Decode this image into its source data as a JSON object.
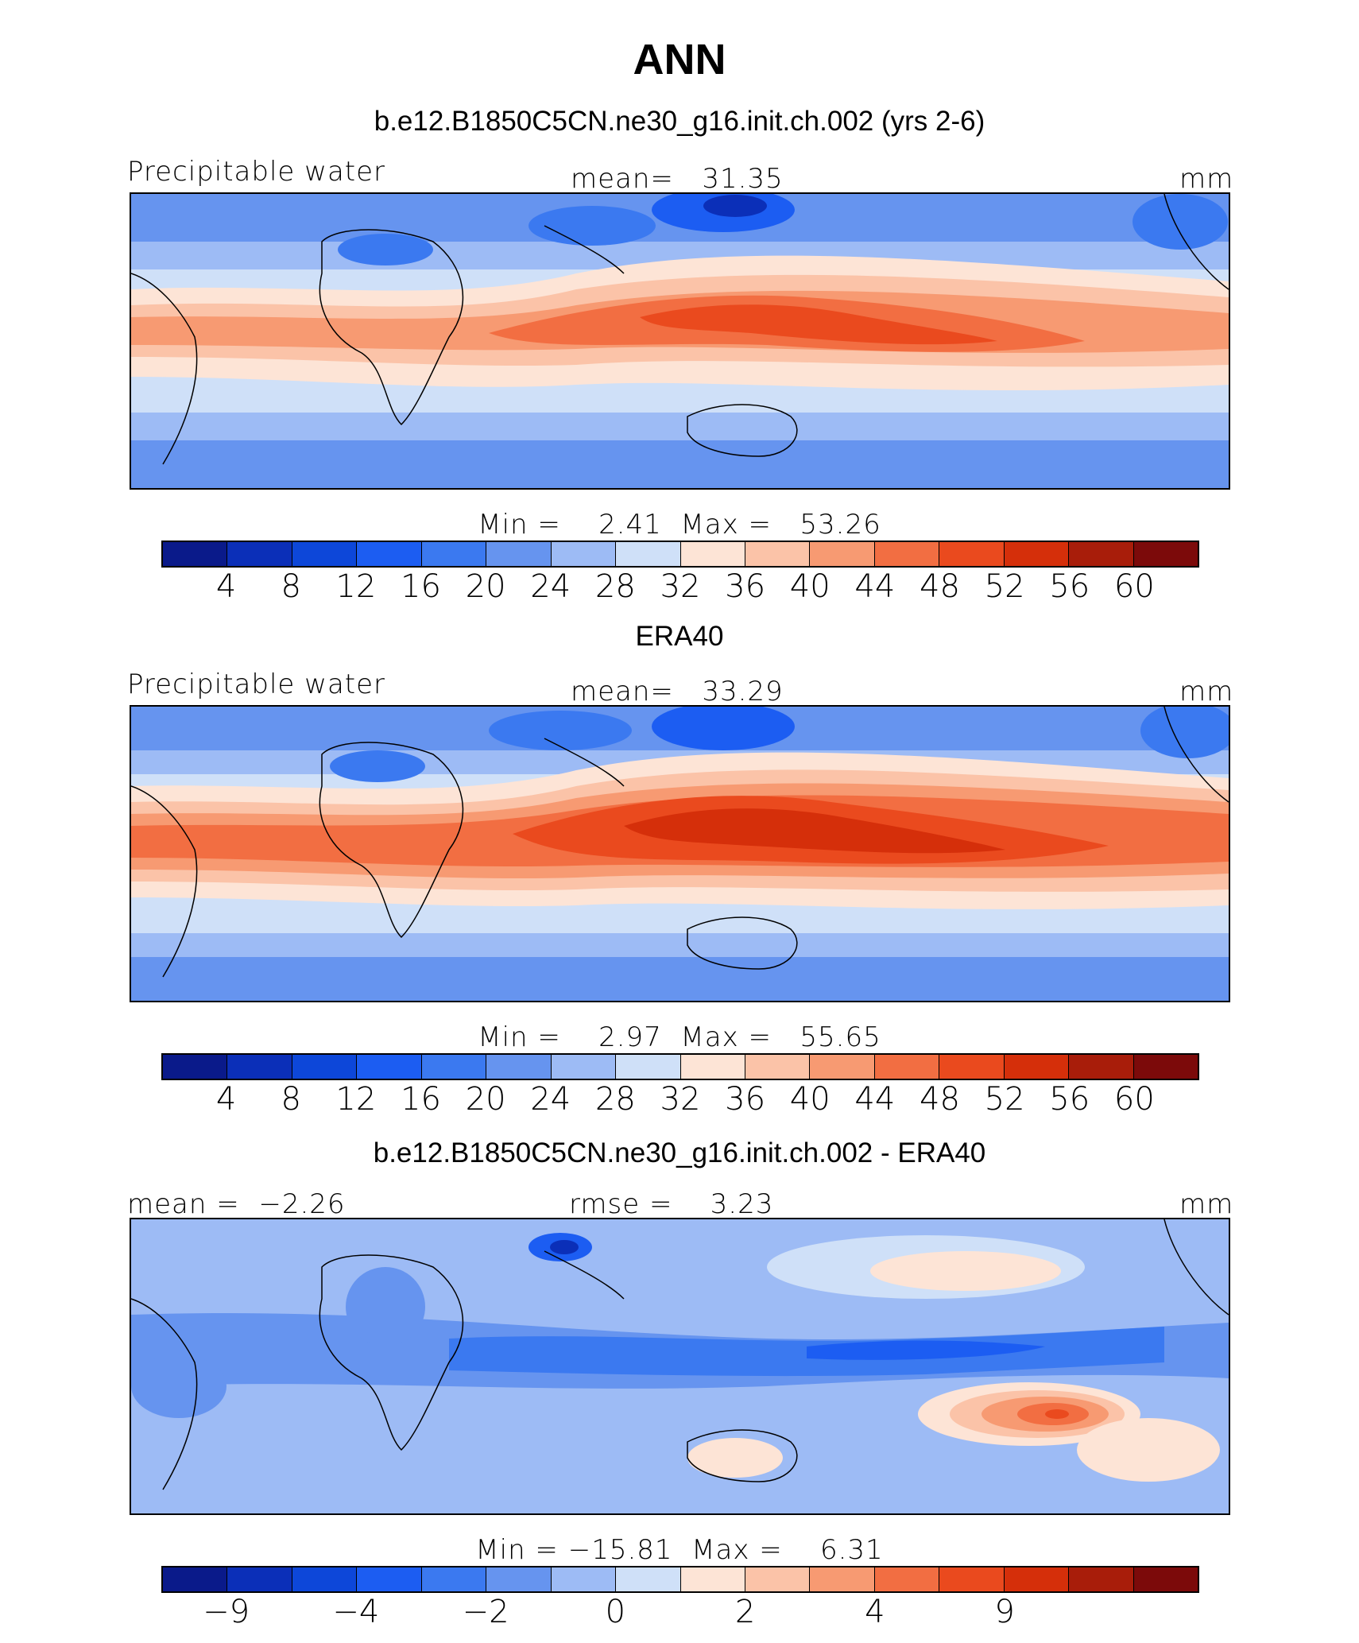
{
  "title": "ANN",
  "colors": {
    "abs_scale": [
      "#0a1a8a",
      "#0b2fb8",
      "#0d47d9",
      "#1c5df2",
      "#3b79f0",
      "#6694ef",
      "#9dbbf5",
      "#cfe0f8",
      "#fde4d6",
      "#fbc3a8",
      "#f79a72",
      "#f26e42",
      "#ea4a1e",
      "#d52f0a",
      "#a81d0a",
      "#7c0a0a"
    ],
    "diff_scale": [
      "#0a1a8a",
      "#0b2fb8",
      "#0d47d9",
      "#1c5df2",
      "#3b79f0",
      "#6694ef",
      "#9dbbf5",
      "#cfe0f8",
      "#fde4d6",
      "#fbc3a8",
      "#f79a72",
      "#f26e42",
      "#ea4a1e",
      "#d52f0a",
      "#a81d0a",
      "#7c0a0a"
    ]
  },
  "panels": [
    {
      "title": "b.e12.B1850C5CN.ne30_g16.init.ch.002 (yrs 2-6)",
      "left_label": "Precipitable water",
      "center_label": "mean=   31.35",
      "units": "mm",
      "min_max": "Min =    2.41  Max =   53.26",
      "ticks": [
        "4",
        "8",
        "12",
        "16",
        "20",
        "24",
        "28",
        "32",
        "36",
        "40",
        "44",
        "48",
        "52",
        "56",
        "60"
      ]
    },
    {
      "title": "ERA40",
      "left_label": "Precipitable water",
      "center_label": "mean=   33.29",
      "units": "mm",
      "min_max": "Min =    2.97  Max =   55.65",
      "ticks": [
        "4",
        "8",
        "12",
        "16",
        "20",
        "24",
        "28",
        "32",
        "36",
        "40",
        "44",
        "48",
        "52",
        "56",
        "60"
      ]
    },
    {
      "title": "b.e12.B1850C5CN.ne30_g16.init.ch.002 - ERA40",
      "left_label": "mean =  −2.26",
      "center_label": "rmse =    3.23",
      "units": "mm",
      "min_max": "Min = −15.81  Max =    6.31",
      "ticks": [
        "−9",
        "",
        "−4",
        "",
        "−2",
        "",
        "0",
        "",
        "2",
        "",
        "4",
        "",
        "9",
        "",
        ""
      ]
    }
  ]
}
